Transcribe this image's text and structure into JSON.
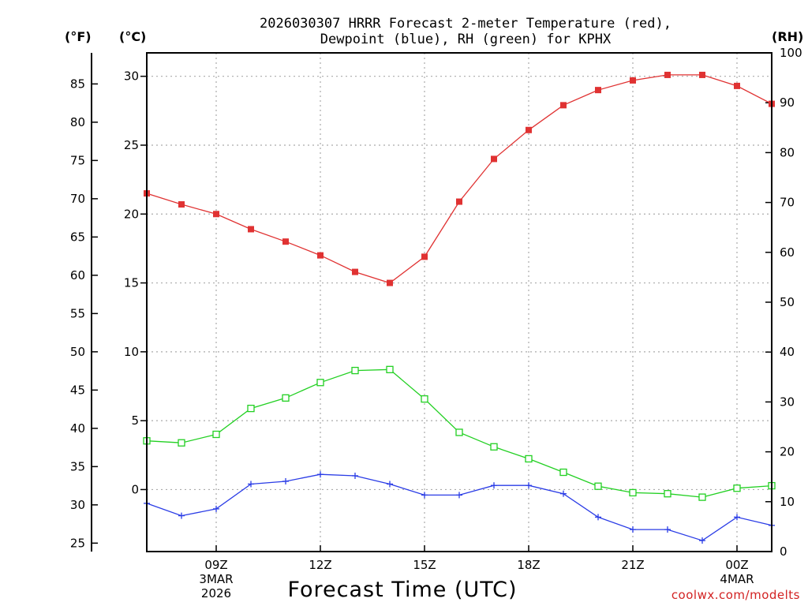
{
  "chart_data": {
    "type": "line",
    "title_line1": "2026030307 HRRR Forecast 2-meter Temperature (red),",
    "title_line2": "Dewpoint (blue), RH (green) for KPHX",
    "xlabel": "Forecast Time (UTC)",
    "unit_labels": {
      "fahrenheit": "(°F)",
      "celsius": "(°C)",
      "rh": "(RH)"
    },
    "credit": "coolwx.com/modelts",
    "x_hours": [
      7,
      8,
      9,
      10,
      11,
      12,
      13,
      14,
      15,
      16,
      17,
      18,
      19,
      20,
      21,
      22,
      23,
      24,
      25
    ],
    "x_ticks": [
      {
        "hour": 9,
        "lines": [
          "09Z",
          "3MAR",
          "2026"
        ]
      },
      {
        "hour": 12,
        "lines": [
          "12Z"
        ]
      },
      {
        "hour": 15,
        "lines": [
          "15Z"
        ]
      },
      {
        "hour": 18,
        "lines": [
          "18Z"
        ]
      },
      {
        "hour": 21,
        "lines": [
          "21Z"
        ]
      },
      {
        "hour": 24,
        "lines": [
          "00Z",
          "4MAR"
        ]
      }
    ],
    "celsius_axis": {
      "range": [
        -4.5,
        31.7
      ],
      "ticks": [
        0,
        5,
        10,
        15,
        20,
        25,
        30
      ]
    },
    "fahrenheit_ticks": [
      25,
      30,
      35,
      40,
      45,
      50,
      55,
      60,
      65,
      70,
      75,
      80,
      85
    ],
    "rh_axis": {
      "range": [
        0,
        100
      ],
      "ticks": [
        0,
        10,
        20,
        30,
        40,
        50,
        60,
        70,
        80,
        90,
        100
      ]
    },
    "series": [
      {
        "name": "Temperature",
        "axis": "celsius",
        "color": "#e03232",
        "marker": "filled-square",
        "values": [
          21.5,
          20.7,
          20.0,
          18.9,
          18.0,
          17.0,
          15.8,
          15.0,
          16.9,
          20.9,
          24.0,
          26.1,
          27.9,
          29.0,
          29.7,
          30.1,
          30.1,
          29.3,
          28.0
        ]
      },
      {
        "name": "Dewpoint",
        "axis": "celsius",
        "color": "#2a3ce6",
        "marker": "plus",
        "values": [
          -1.0,
          -1.9,
          -1.4,
          0.4,
          0.6,
          1.1,
          1.0,
          0.4,
          -0.4,
          -0.4,
          0.3,
          0.3,
          -0.3,
          -2.0,
          -2.9,
          -2.9,
          -3.7,
          -2.0,
          -2.6
        ]
      },
      {
        "name": "RH",
        "axis": "rh",
        "color": "#22d022",
        "marker": "open-square",
        "values": [
          22.2,
          21.8,
          23.5,
          28.7,
          30.8,
          33.9,
          36.3,
          36.5,
          30.6,
          23.9,
          21.0,
          18.6,
          15.9,
          13.1,
          11.8,
          11.6,
          10.9,
          12.7,
          13.2
        ]
      }
    ]
  }
}
